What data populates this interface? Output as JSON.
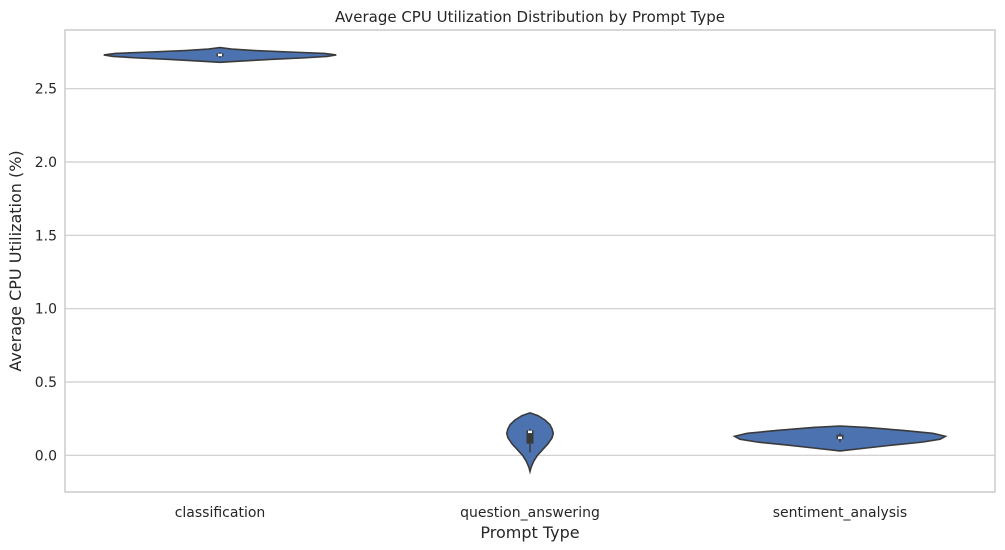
{
  "chart_data": {
    "type": "violin",
    "title": "Average CPU Utilization Distribution by Prompt Type",
    "xlabel": "Prompt Type",
    "ylabel": "Average CPU Utilization (%)",
    "ylim": [
      -0.25,
      2.9
    ],
    "yticks": [
      0.0,
      0.5,
      1.0,
      1.5,
      2.0,
      2.5
    ],
    "ytick_labels": [
      "0.0",
      "0.5",
      "1.0",
      "1.5",
      "2.0",
      "2.5"
    ],
    "grid": true,
    "colors": {
      "fill": "#4c72b0",
      "edge": "#3a3a3a",
      "box": "#3a3a3a",
      "median": "#ffffff"
    },
    "categories": [
      "classification",
      "question_answering",
      "sentiment_analysis"
    ],
    "series": [
      {
        "name": "classification",
        "range": [
          2.68,
          2.78
        ],
        "q1": 2.72,
        "median": 2.73,
        "q3": 2.74,
        "whisker": [
          2.71,
          2.75
        ],
        "max_half_width_frac": 0.75,
        "profile": [
          [
            2.68,
            0.0
          ],
          [
            2.69,
            0.22
          ],
          [
            2.7,
            0.45
          ],
          [
            2.71,
            0.72
          ],
          [
            2.72,
            0.92
          ],
          [
            2.73,
            1.0
          ],
          [
            2.74,
            0.9
          ],
          [
            2.75,
            0.6
          ],
          [
            2.76,
            0.3
          ],
          [
            2.77,
            0.1
          ],
          [
            2.78,
            0.0
          ]
        ]
      },
      {
        "name": "question_answering",
        "range": [
          -0.11,
          0.29
        ],
        "q1": 0.08,
        "median": 0.16,
        "q3": 0.17,
        "whisker": [
          0.02,
          0.18
        ],
        "max_half_width_frac": 0.15,
        "profile": [
          [
            -0.11,
            0.0
          ],
          [
            -0.08,
            0.05
          ],
          [
            -0.04,
            0.16
          ],
          [
            0.0,
            0.32
          ],
          [
            0.04,
            0.55
          ],
          [
            0.08,
            0.78
          ],
          [
            0.12,
            0.95
          ],
          [
            0.15,
            1.0
          ],
          [
            0.18,
            0.95
          ],
          [
            0.21,
            0.85
          ],
          [
            0.24,
            0.65
          ],
          [
            0.27,
            0.35
          ],
          [
            0.29,
            0.0
          ]
        ]
      },
      {
        "name": "sentiment_analysis",
        "range": [
          0.03,
          0.2
        ],
        "q1": 0.11,
        "median": 0.12,
        "q3": 0.14,
        "whisker": [
          0.09,
          0.15
        ],
        "max_half_width_frac": 0.68,
        "profile": [
          [
            0.03,
            0.0
          ],
          [
            0.05,
            0.25
          ],
          [
            0.07,
            0.5
          ],
          [
            0.09,
            0.78
          ],
          [
            0.11,
            0.95
          ],
          [
            0.13,
            1.0
          ],
          [
            0.15,
            0.88
          ],
          [
            0.17,
            0.6
          ],
          [
            0.19,
            0.25
          ],
          [
            0.2,
            0.0
          ]
        ]
      }
    ]
  }
}
